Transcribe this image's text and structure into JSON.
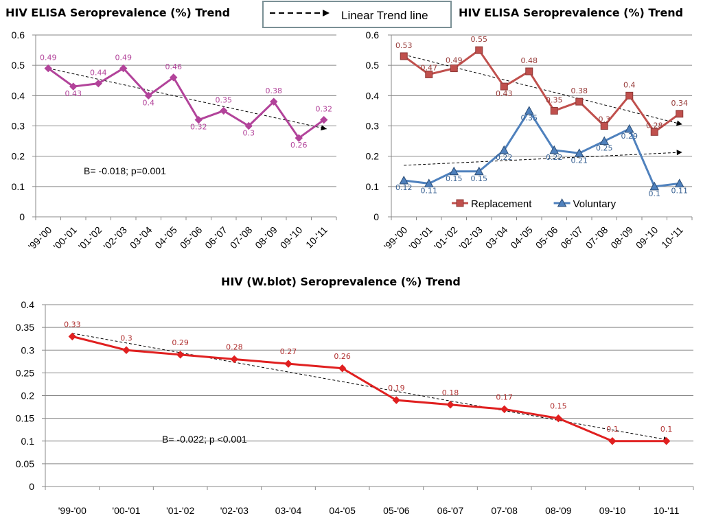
{
  "legend_box": {
    "label": "Linear Trend line"
  },
  "chart_data": [
    {
      "type": "line",
      "title": "HIV ELISA Seroprevalence (%) Trend",
      "categories": [
        "'99-'00",
        "'00-'01",
        "'01-'02",
        "'02-'03",
        "03-'04",
        "04-'05",
        "05-'06",
        "06-'07",
        "07-'08",
        "08-'09",
        "09-'10",
        "10-'11"
      ],
      "yticks": [
        "0",
        "0.1",
        "0.2",
        "0.3",
        "0.4",
        "0.5",
        "0.6"
      ],
      "ylim": [
        0,
        0.6
      ],
      "grid": true,
      "series": [
        {
          "values": [
            0.49,
            0.43,
            0.44,
            0.49,
            0.4,
            0.46,
            0.32,
            0.35,
            0.3,
            0.38,
            0.26,
            0.32
          ],
          "labels": [
            "0.49",
            "0.43",
            "0.44",
            "0.49",
            "0.4",
            "0.46",
            "0.32",
            "0.35",
            "0.3",
            "0.38",
            "0.26",
            "0.32"
          ],
          "color": "#b2439a",
          "marker": "diamond",
          "trend": [
            0.49,
            0.29
          ]
        }
      ],
      "annotation": "B= -0.018; p=0.001"
    },
    {
      "type": "line",
      "title": "HIV ELISA Seroprevalence (%) Trend",
      "categories": [
        "'99-'00",
        "'00-'01",
        "'01-'02",
        "'02-'03",
        "03-'04",
        "04-'05",
        "05-'06",
        "06-'07",
        "07-'08",
        "08-'09",
        "09-'10",
        "10-'11"
      ],
      "yticks": [
        "0",
        "0.1",
        "0.2",
        "0.3",
        "0.4",
        "0.5",
        "0.6"
      ],
      "ylim": [
        0,
        0.6
      ],
      "grid": true,
      "legend_position": "bottom-center",
      "series": [
        {
          "name": "Replacement",
          "values": [
            0.53,
            0.47,
            0.49,
            0.55,
            0.43,
            0.48,
            0.35,
            0.38,
            0.3,
            0.4,
            0.28,
            0.34
          ],
          "labels": [
            "0.53",
            "0.47",
            "0.49",
            "0.55",
            "0.43",
            "0.48",
            "0.35",
            "0.38",
            "0.3",
            "0.4",
            "0.28",
            "0.34"
          ],
          "color": "#c0504d",
          "label_color": "#953735",
          "marker": "square",
          "trend": [
            0.535,
            0.305
          ]
        },
        {
          "name": "Voluntary",
          "values": [
            0.12,
            0.11,
            0.15,
            0.15,
            0.22,
            0.35,
            0.22,
            0.21,
            0.25,
            0.29,
            0.1,
            0.11
          ],
          "labels": [
            "0.12",
            "0.11",
            "0.15",
            "0.15",
            "0.22",
            "0.35",
            "0.22",
            "0.21",
            "0.25",
            "0.29",
            "0.1",
            "0.11"
          ],
          "color": "#4f81bd",
          "label_color": "#376092",
          "marker": "triangle",
          "trend": [
            0.17,
            0.213
          ]
        }
      ]
    },
    {
      "type": "line",
      "title": "HIV (W.blot) Seroprevalence (%) Trend",
      "categories": [
        "'99-'00",
        "'00-'01",
        "'01-'02",
        "'02-'03",
        "03-'04",
        "04-'05",
        "05-'06",
        "06-'07",
        "07-'08",
        "08-'09",
        "09-'10",
        "10-'11"
      ],
      "yticks": [
        "0",
        "0.05",
        "0.1",
        "0.15",
        "0.2",
        "0.25",
        "0.3",
        "0.35",
        "0.4"
      ],
      "ylim": [
        0,
        0.4
      ],
      "grid": true,
      "series": [
        {
          "values": [
            0.33,
            0.3,
            0.29,
            0.28,
            0.27,
            0.26,
            0.19,
            0.18,
            0.17,
            0.15,
            0.1,
            0.1
          ],
          "labels": [
            "0.33",
            "0.3",
            "0.29",
            "0.28",
            "0.27",
            "0.26",
            "0.19",
            "0.18",
            "0.17",
            "0.15",
            "0.1",
            "0.1"
          ],
          "color": "#e02020",
          "label_color": "#b03030",
          "marker": "diamond",
          "trend": [
            0.337,
            0.102
          ]
        }
      ],
      "annotation": "B= -0.022; p <0.001"
    }
  ]
}
